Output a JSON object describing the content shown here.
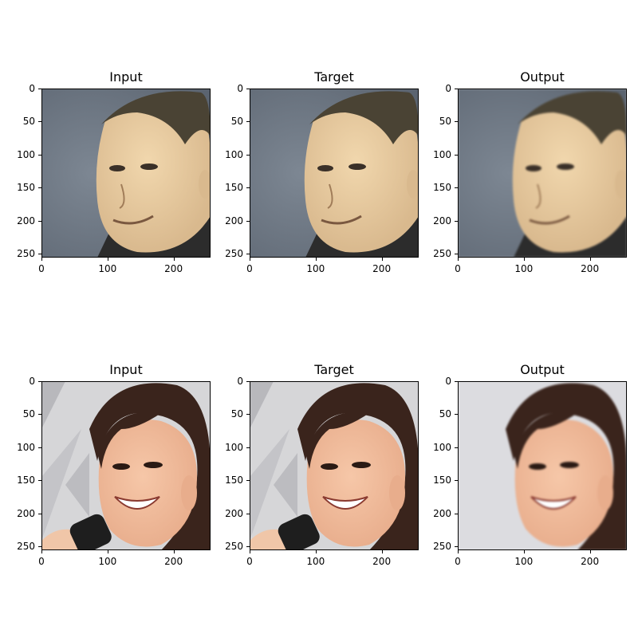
{
  "figure": {
    "panels": [
      {
        "title": "Input",
        "face": "man",
        "variant": "photo"
      },
      {
        "title": "Target",
        "face": "man",
        "variant": "photo"
      },
      {
        "title": "Output",
        "face": "man",
        "variant": "generated"
      },
      {
        "title": "Input",
        "face": "woman",
        "variant": "photo"
      },
      {
        "title": "Target",
        "face": "woman",
        "variant": "photo"
      },
      {
        "title": "Output",
        "face": "woman",
        "variant": "generated"
      }
    ],
    "y_ticks": [
      "0",
      "50",
      "100",
      "150",
      "200",
      "250"
    ],
    "x_ticks": [
      "0",
      "100",
      "200"
    ]
  },
  "colors": {
    "man_bg": "#5b6470",
    "man_skin": "#d9b98e",
    "man_hair": "#4a4334",
    "woman_bg": "#d6d6d8",
    "woman_skin": "#e8ad8c",
    "woman_hair": "#3a241c",
    "mic": "#1e1e1e"
  }
}
